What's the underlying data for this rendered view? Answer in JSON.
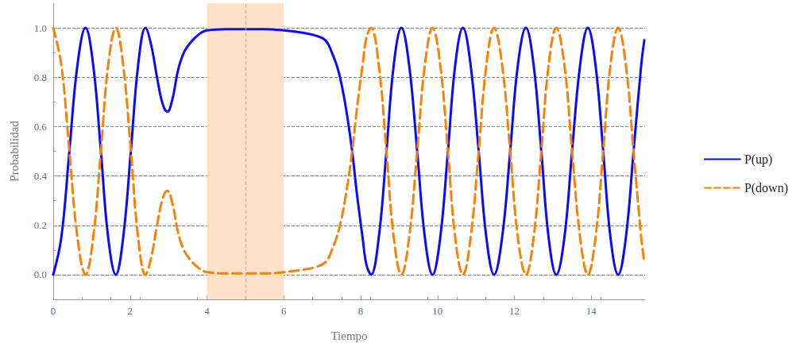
{
  "chart_data": {
    "type": "line",
    "xlabel": "Tiempo",
    "ylabel": "Probabilidad",
    "x": [
      0,
      0.21,
      0.42,
      0.63,
      0.84,
      1.04,
      1.24,
      1.43,
      1.63,
      1.82,
      2.02,
      2.21,
      2.4,
      2.55,
      2.7,
      2.85,
      2.97,
      3.1,
      3.25,
      3.4,
      3.57,
      3.8,
      4,
      4.5,
      5,
      5.5,
      6,
      6.5,
      6.8,
      7.08,
      7.25,
      7.43,
      7.6,
      7.77,
      7.9,
      8.05,
      8.15,
      8.27,
      8.47,
      8.67,
      8.86,
      9.06,
      9.26,
      9.47,
      9.67,
      9.87,
      10.07,
      10.27,
      10.46,
      10.66,
      10.86,
      11.07,
      11.27,
      11.47,
      11.68,
      11.89,
      12.09,
      12.3,
      12.5,
      12.7,
      12.89,
      13.09,
      13.3,
      13.5,
      13.71,
      13.91,
      14.11,
      14.31,
      14.5,
      14.7,
      14.9,
      15.1,
      15.3,
      15.38
    ],
    "series": [
      {
        "name": "P(up)",
        "color": "#0a0aff",
        "line_style": "solid",
        "values": [
          0,
          0.15,
          0.5,
          0.85,
          1,
          0.85,
          0.5,
          0.15,
          0,
          0.15,
          0.5,
          0.85,
          1,
          0.93,
          0.8,
          0.69,
          0.66,
          0.71,
          0.83,
          0.9,
          0.94,
          0.975,
          0.99,
          0.995,
          0.995,
          0.995,
          0.99,
          0.98,
          0.97,
          0.95,
          0.9,
          0.82,
          0.69,
          0.51,
          0.33,
          0.15,
          0.04,
          0,
          0.15,
          0.5,
          0.85,
          1,
          0.85,
          0.5,
          0.15,
          0,
          0.15,
          0.5,
          0.85,
          1,
          0.85,
          0.5,
          0.15,
          0,
          0.15,
          0.5,
          0.85,
          1,
          0.85,
          0.5,
          0.15,
          0,
          0.15,
          0.5,
          0.85,
          1,
          0.85,
          0.5,
          0.15,
          0,
          0.15,
          0.5,
          0.85,
          0.95
        ]
      },
      {
        "name": "P(down)",
        "color": "#ff8000",
        "line_style": "dashed",
        "values": [
          1,
          0.85,
          0.5,
          0.15,
          0,
          0.15,
          0.5,
          0.85,
          1,
          0.85,
          0.5,
          0.15,
          0,
          0.07,
          0.2,
          0.31,
          0.34,
          0.29,
          0.17,
          0.1,
          0.06,
          0.025,
          0.01,
          0.005,
          0.005,
          0.005,
          0.01,
          0.02,
          0.03,
          0.05,
          0.1,
          0.18,
          0.31,
          0.49,
          0.67,
          0.85,
          0.96,
          1,
          0.85,
          0.5,
          0.15,
          0,
          0.15,
          0.5,
          0.85,
          1,
          0.85,
          0.5,
          0.15,
          0,
          0.15,
          0.5,
          0.85,
          1,
          0.85,
          0.5,
          0.15,
          0,
          0.15,
          0.5,
          0.85,
          1,
          0.85,
          0.5,
          0.15,
          0,
          0.15,
          0.5,
          0.85,
          1,
          0.85,
          0.5,
          0.15,
          0.05
        ]
      }
    ],
    "xlim": [
      0,
      15.4
    ],
    "xticks": [
      0,
      2,
      4,
      6,
      8,
      10,
      12,
      14
    ],
    "ylim": [
      -0.1,
      1.1
    ],
    "yticks": [
      {
        "value": 0,
        "label": "0.0"
      },
      {
        "value": 0.2,
        "label": "0.2"
      },
      {
        "value": 0.4,
        "label": "0.4"
      },
      {
        "value": 0.6,
        "label": "0.6"
      },
      {
        "value": 0.8,
        "label": "0.8"
      },
      {
        "value": 1,
        "label": "1.0"
      }
    ],
    "grid": "y",
    "legend": "right",
    "marker": "none",
    "bands": [
      {
        "axis": "x",
        "from": 4,
        "to": 6,
        "color": "#fde2c8"
      }
    ],
    "ref_lines": [
      {
        "axis": "x",
        "value": 5,
        "color": "#f4a3a3",
        "line_style": "dashed"
      }
    ]
  }
}
